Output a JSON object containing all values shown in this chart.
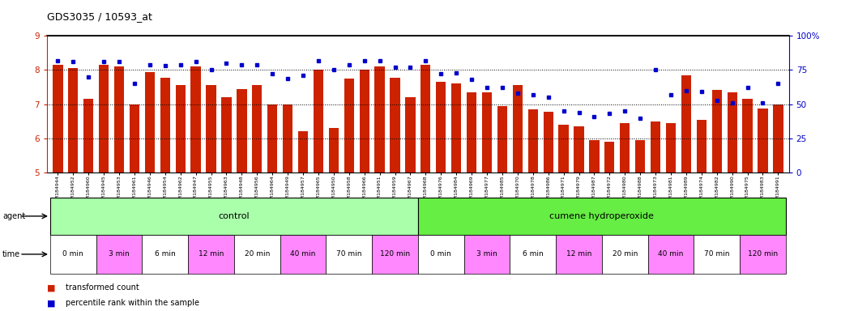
{
  "title": "GDS3035 / 10593_at",
  "samples": [
    "GSM184944",
    "GSM184952",
    "GSM184960",
    "GSM184945",
    "GSM184953",
    "GSM184961",
    "GSM184946",
    "GSM184954",
    "GSM184962",
    "GSM184947",
    "GSM184955",
    "GSM184963",
    "GSM184948",
    "GSM184956",
    "GSM184964",
    "GSM184949",
    "GSM184957",
    "GSM184965",
    "GSM184950",
    "GSM184958",
    "GSM184966",
    "GSM184951",
    "GSM184959",
    "GSM184967",
    "GSM184968",
    "GSM184976",
    "GSM184984",
    "GSM184969",
    "GSM184977",
    "GSM184985",
    "GSM184970",
    "GSM184978",
    "GSM184986",
    "GSM184971",
    "GSM184979",
    "GSM184987",
    "GSM184972",
    "GSM184980",
    "GSM184988",
    "GSM184973",
    "GSM184981",
    "GSM184989",
    "GSM184974",
    "GSM184982",
    "GSM184990",
    "GSM184975",
    "GSM184983",
    "GSM184991"
  ],
  "bar_values": [
    8.15,
    8.05,
    7.15,
    8.15,
    8.1,
    7.0,
    7.95,
    7.78,
    7.55,
    8.1,
    7.55,
    7.2,
    7.45,
    7.55,
    7.0,
    6.98,
    6.2,
    8.0,
    6.3,
    7.75,
    8.0,
    8.1,
    7.78,
    7.2,
    8.15,
    7.65,
    7.6,
    7.35,
    7.35,
    6.95,
    7.55,
    6.85,
    6.78,
    6.4,
    6.35,
    5.95,
    5.9,
    6.45,
    5.95,
    6.5,
    6.45,
    7.85,
    6.55,
    7.42,
    7.35,
    7.15,
    6.88,
    7.0
  ],
  "percentile_values": [
    82,
    81,
    70,
    81,
    81,
    65,
    79,
    78,
    79,
    81,
    75,
    80,
    79,
    79,
    72,
    69,
    71,
    82,
    75,
    79,
    82,
    82,
    77,
    77,
    82,
    72,
    73,
    68,
    62,
    62,
    58,
    57,
    55,
    45,
    44,
    41,
    43,
    45,
    40,
    75,
    57,
    60,
    59,
    53,
    51,
    62,
    51,
    65
  ],
  "ylim_left": [
    5,
    9
  ],
  "ylim_right": [
    0,
    100
  ],
  "yticks_left": [
    5,
    6,
    7,
    8,
    9
  ],
  "yticks_right": [
    0,
    25,
    50,
    75,
    100
  ],
  "bar_color": "#cc2200",
  "dot_color": "#0000cc",
  "agent_labels": [
    "control",
    "cumene hydroperoxide"
  ],
  "agent_color_ctrl": "#aaffaa",
  "agent_color_trt": "#66ee44",
  "time_labels": [
    "0 min",
    "3 min",
    "6 min",
    "12 min",
    "20 min",
    "40 min",
    "70 min",
    "120 min"
  ],
  "time_colors": [
    "#ffffff",
    "#ff88ff",
    "#ffffff",
    "#ff88ff",
    "#ffffff",
    "#ff88ff",
    "#ffffff",
    "#ff88ff"
  ],
  "n_control": 24,
  "n_treatment": 24,
  "samples_per_time": 3,
  "bg_color": "#f0f0f0"
}
